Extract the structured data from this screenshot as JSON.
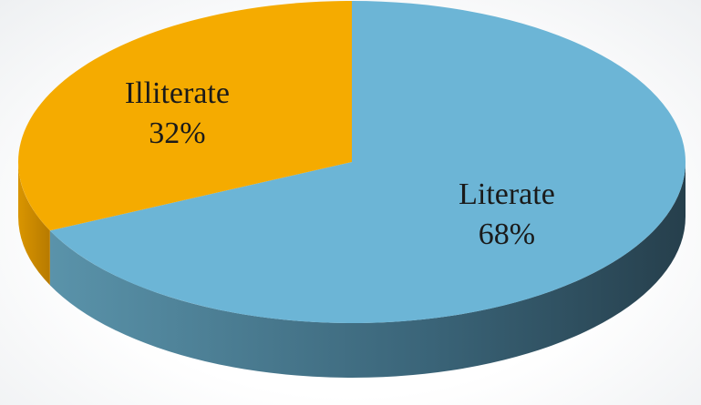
{
  "chart_data": {
    "type": "pie",
    "style": "3d",
    "slices": [
      {
        "name": "Literate",
        "value": 68,
        "label": "68%",
        "color": "#6cb5d6",
        "side_color": "#3d6f85"
      },
      {
        "name": "Illiterate",
        "value": 32,
        "label": "32%",
        "color": "#f5ab00",
        "side_color": "#c78800"
      }
    ],
    "legend": "none",
    "labels_position": "inside"
  }
}
